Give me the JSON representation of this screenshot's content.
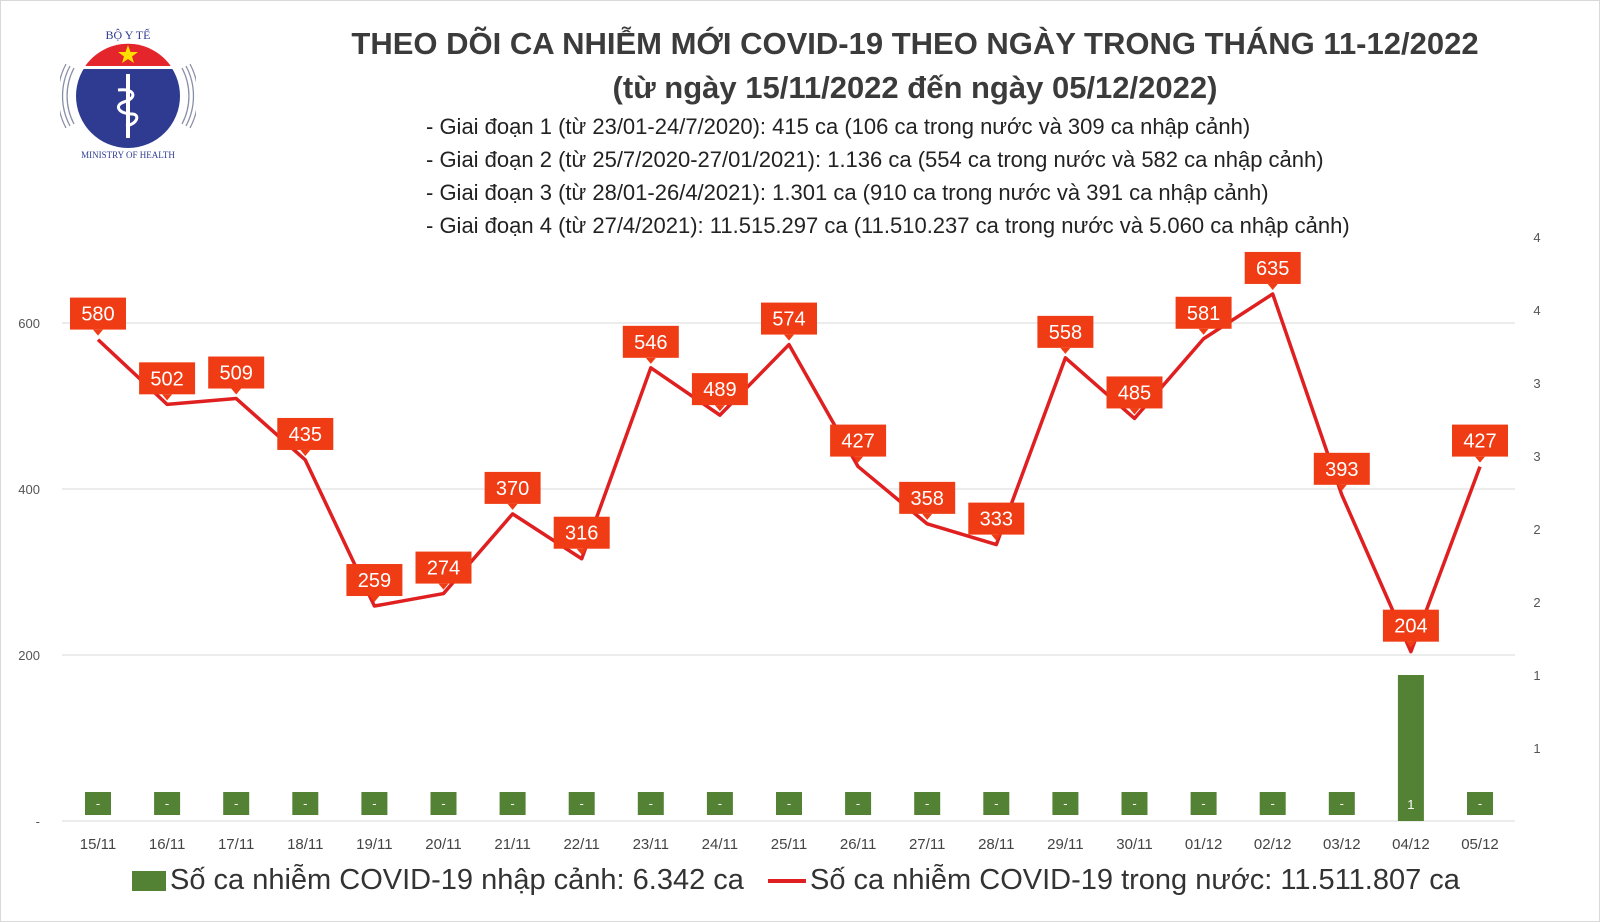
{
  "logo": {
    "top_text": "BỘ Y TẾ",
    "bottom_text": "MINISTRY OF HEALTH"
  },
  "title": "THEO DÕI CA NHIỄM MỚI COVID-19 THEO NGÀY TRONG THÁNG 11-12/2022",
  "subtitle": "(từ ngày 15/11/2022 đến ngày 05/12/2022)",
  "notes": [
    "- Giai đoạn 1 (từ 23/01-24/7/2020): 415 ca (106 ca trong nước và 309 ca nhập cảnh)",
    "- Giai đoạn 2 (từ 25/7/2020-27/01/2021): 1.136 ca (554 ca trong nước và 582 ca nhập cảnh)",
    "- Giai đoạn 3 (từ 28/01-26/4/2021): 1.301 ca (910 ca trong nước và 391 ca nhập cảnh)",
    "- Giai đoạn 4 (từ 27/4/2021): 11.515.297 ca (11.510.237 ca trong nước và 5.060 ca nhập cảnh)"
  ],
  "chart_data": {
    "type": "bar+line",
    "categories": [
      "15/11",
      "16/11",
      "17/11",
      "18/11",
      "19/11",
      "20/11",
      "21/11",
      "22/11",
      "23/11",
      "24/11",
      "25/11",
      "26/11",
      "27/11",
      "28/11",
      "29/11",
      "30/11",
      "01/12",
      "02/12",
      "03/12",
      "04/12",
      "05/12"
    ],
    "series": [
      {
        "name": "Số ca nhiễm COVID-19 nhập cảnh: 6.342 ca",
        "type": "bar",
        "axis": "right",
        "color": "#548235",
        "values": [
          0,
          0,
          0,
          0,
          0,
          0,
          0,
          0,
          0,
          0,
          0,
          0,
          0,
          0,
          0,
          0,
          0,
          0,
          0,
          1,
          0
        ],
        "labels": [
          "-",
          "-",
          "-",
          "-",
          "-",
          "-",
          "-",
          "-",
          "-",
          "-",
          "-",
          "-",
          "-",
          "-",
          "-",
          "-",
          "-",
          "-",
          "-",
          "1",
          "-"
        ]
      },
      {
        "name": "Số ca nhiễm COVID-19 trong nước: 11.511.807 ca",
        "type": "line",
        "axis": "left",
        "color": "#e02020",
        "label_bg": "#f03c14",
        "values": [
          580,
          502,
          509,
          435,
          259,
          274,
          370,
          316,
          546,
          489,
          574,
          427,
          358,
          333,
          558,
          485,
          581,
          635,
          393,
          204,
          427
        ]
      }
    ],
    "left_axis": {
      "ticks": [
        "-",
        "200",
        "400",
        "600"
      ],
      "tick_values": [
        0,
        200,
        400,
        600
      ],
      "ylim": [
        0,
        700
      ]
    },
    "right_axis": {
      "ticks": [
        "1",
        "1",
        "2",
        "2",
        "3",
        "3",
        "4",
        "4"
      ],
      "tick_values": [
        0.5,
        1,
        1.5,
        2,
        2.5,
        3,
        3.5,
        4
      ],
      "ylim": [
        0,
        4
      ]
    },
    "grid": true,
    "legend_position": "bottom"
  }
}
